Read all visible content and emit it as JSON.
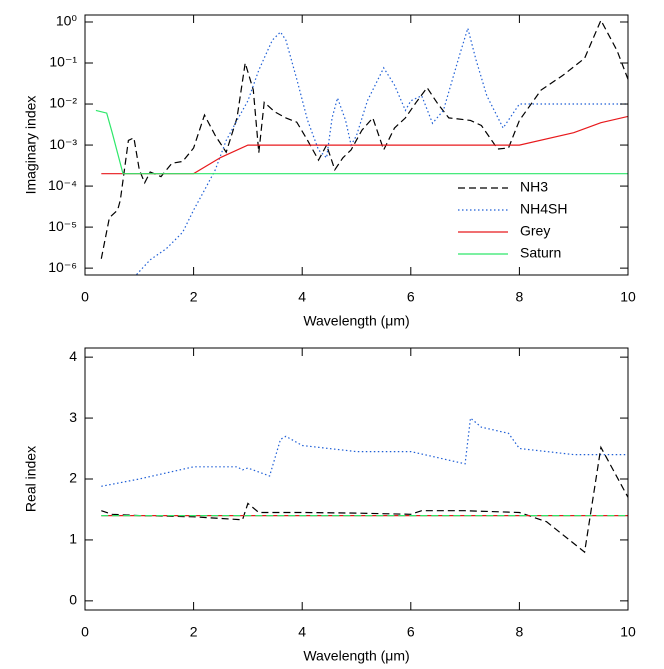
{
  "chart_data": [
    {
      "type": "line",
      "ylabel": "Imaginary index",
      "xlabel": "Wavelength (μm)",
      "ylog": true,
      "legend": "lower-right",
      "xlim": [
        0,
        10
      ],
      "xticks": [
        0,
        2,
        4,
        6,
        8,
        10
      ],
      "ylim": [
        6.8e-07,
        1.48
      ],
      "yticks": [
        {
          "value": 1e-06,
          "label": "10⁻⁶"
        },
        {
          "value": 1e-05,
          "label": "10⁻⁵"
        },
        {
          "value": 0.0001,
          "label": "10⁻⁴"
        },
        {
          "value": 0.001,
          "label": "10⁻³"
        },
        {
          "value": 0.01,
          "label": "10⁻²"
        },
        {
          "value": 0.1,
          "label": "10⁻¹"
        },
        {
          "value": 1,
          "label": "10⁰"
        }
      ],
      "series": [
        {
          "name": "NH3",
          "color": "#000000",
          "dash": "dashed",
          "x": [
            0.3,
            0.45,
            0.6,
            0.65,
            0.8,
            0.9,
            1.0,
            1.1,
            1.2,
            1.4,
            1.6,
            1.8,
            2.0,
            2.2,
            2.4,
            2.6,
            2.8,
            2.95,
            3.1,
            3.2,
            3.3,
            3.5,
            3.7,
            3.9,
            4.1,
            4.3,
            4.45,
            4.6,
            4.75,
            4.9,
            5.1,
            5.3,
            5.5,
            5.7,
            5.9,
            6.1,
            6.3,
            6.5,
            6.7,
            7.1,
            7.3,
            7.6,
            7.8,
            8.0,
            8.4,
            8.8,
            9.2,
            9.5,
            9.8,
            10
          ],
          "values": [
            1.7e-06,
            1.7e-05,
            2.6e-05,
            4.5e-05,
            0.0013,
            0.0015,
            0.00025,
            0.00012,
            0.00022,
            0.00017,
            0.00036,
            0.0004,
            0.00085,
            0.0054,
            0.0017,
            0.00067,
            0.0046,
            0.1,
            0.022,
            0.00065,
            0.011,
            0.0064,
            0.0046,
            0.0036,
            0.0013,
            0.00043,
            0.001,
            0.00025,
            0.00049,
            0.00076,
            0.0023,
            0.0046,
            0.00076,
            0.0026,
            0.0046,
            0.011,
            0.025,
            0.01,
            0.0046,
            0.004,
            0.003,
            0.0008,
            0.00085,
            0.004,
            0.022,
            0.05,
            0.13,
            1.1,
            0.2,
            0.04
          ]
        },
        {
          "name": "NH4SH",
          "color": "#1f5fd6",
          "dash": "dotted",
          "x": [
            0.95,
            1.2,
            1.5,
            1.8,
            2.0,
            2.2,
            2.4,
            2.6,
            2.8,
            3.0,
            3.2,
            3.45,
            3.6,
            3.7,
            3.9,
            4.1,
            4.3,
            4.45,
            4.55,
            4.65,
            4.8,
            4.9,
            5.0,
            5.2,
            5.5,
            5.7,
            5.9,
            6.0,
            6.2,
            6.4,
            6.6,
            6.9,
            7.05,
            7.2,
            7.4,
            7.7,
            8.0,
            10
          ],
          "values": [
            7e-07,
            1.6e-06,
            3e-06,
            7.5e-06,
            2.6e-05,
            8e-05,
            0.00025,
            0.0013,
            0.004,
            0.012,
            0.067,
            0.36,
            0.57,
            0.36,
            0.04,
            0.004,
            0.00076,
            0.00049,
            0.0046,
            0.014,
            0.004,
            0.001,
            0.0017,
            0.012,
            0.076,
            0.029,
            0.007,
            0.012,
            0.016,
            0.0034,
            0.007,
            0.16,
            0.7,
            0.12,
            0.016,
            0.0026,
            0.01,
            0.01
          ]
        },
        {
          "name": "Grey",
          "color": "#e8191c",
          "dash": "solid",
          "x": [
            0.3,
            2.0,
            2.5,
            3.0,
            8.0,
            9.0,
            9.5,
            10
          ],
          "values": [
            0.0002,
            0.0002,
            0.0005,
            0.001,
            0.001,
            0.002,
            0.0035,
            0.005
          ]
        },
        {
          "name": "Saturn",
          "color": "#2ee86a",
          "dash": "solid",
          "x": [
            0.2,
            0.4,
            0.5,
            0.7,
            10
          ],
          "values": [
            0.007,
            0.006,
            0.002,
            0.0002,
            0.0002
          ]
        }
      ]
    },
    {
      "type": "line",
      "ylabel": "Real index",
      "xlabel": "Wavelength (μm)",
      "ylog": false,
      "xlim": [
        0,
        10
      ],
      "xticks": [
        0,
        2,
        4,
        6,
        8,
        10
      ],
      "ylim": [
        -0.15,
        4.15
      ],
      "yticks": [
        0,
        1,
        2,
        3,
        4
      ],
      "series": [
        {
          "color": "#1f5fd6",
          "dash": "dotted",
          "x": [
            0.3,
            1,
            2,
            2.8,
            2.9,
            3.0,
            3.4,
            3.6,
            3.7,
            4,
            5,
            5.5,
            6,
            7,
            7.1,
            7.3,
            7.8,
            8,
            9,
            10
          ],
          "values": [
            1.88,
            2.0,
            2.2,
            2.2,
            2.15,
            2.18,
            2.05,
            2.65,
            2.7,
            2.55,
            2.45,
            2.45,
            2.45,
            2.25,
            3.0,
            2.85,
            2.75,
            2.5,
            2.4,
            2.4
          ]
        },
        {
          "color": "#000000",
          "dash": "dashed",
          "x": [
            0.3,
            0.5,
            1,
            2,
            2.9,
            3.0,
            3.2,
            4,
            5,
            6,
            6.2,
            7,
            8,
            8.5,
            9.2,
            9.5,
            10
          ],
          "values": [
            1.48,
            1.42,
            1.4,
            1.38,
            1.33,
            1.6,
            1.45,
            1.45,
            1.44,
            1.42,
            1.48,
            1.48,
            1.45,
            1.3,
            0.8,
            2.52,
            1.7
          ]
        },
        {
          "color": "#e8191c",
          "dash": "solid",
          "x": [
            0.3,
            10
          ],
          "values": [
            1.4,
            1.4
          ]
        },
        {
          "color": "#2ee86a",
          "dash": "dashed",
          "x": [
            0.3,
            10
          ],
          "values": [
            1.4,
            1.4
          ]
        }
      ]
    }
  ]
}
